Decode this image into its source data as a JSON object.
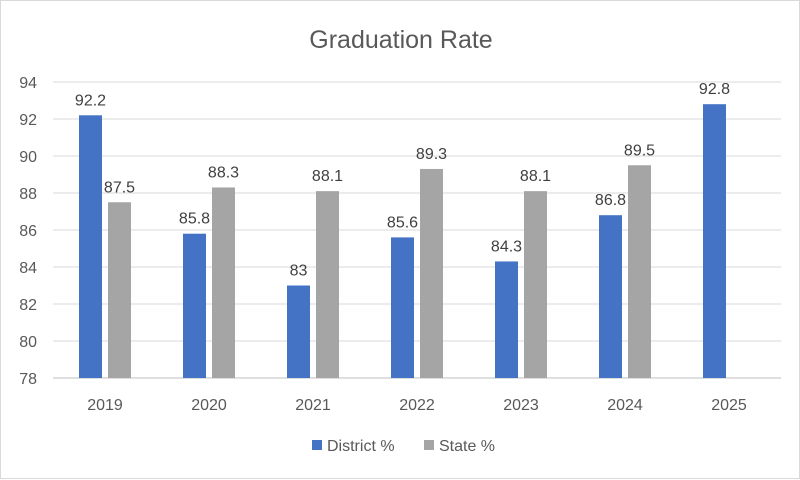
{
  "chart_data": {
    "type": "bar",
    "title": "Graduation Rate",
    "xlabel": "",
    "ylabel": "",
    "categories": [
      "2019",
      "2020",
      "2021",
      "2022",
      "2023",
      "2024",
      "2025"
    ],
    "series": [
      {
        "name": "District %",
        "color": "#4472C4",
        "values": [
          92.2,
          85.8,
          83,
          85.6,
          84.3,
          86.8,
          92.8
        ]
      },
      {
        "name": "State %",
        "color": "#A5A5A5",
        "values": [
          87.5,
          88.3,
          88.1,
          89.3,
          88.1,
          89.5,
          null
        ]
      }
    ],
    "ylim": [
      78,
      94
    ],
    "yticks": [
      78,
      80,
      82,
      84,
      86,
      88,
      90,
      92,
      94
    ],
    "grid": true,
    "legend": "bottom",
    "data_labels": true
  }
}
